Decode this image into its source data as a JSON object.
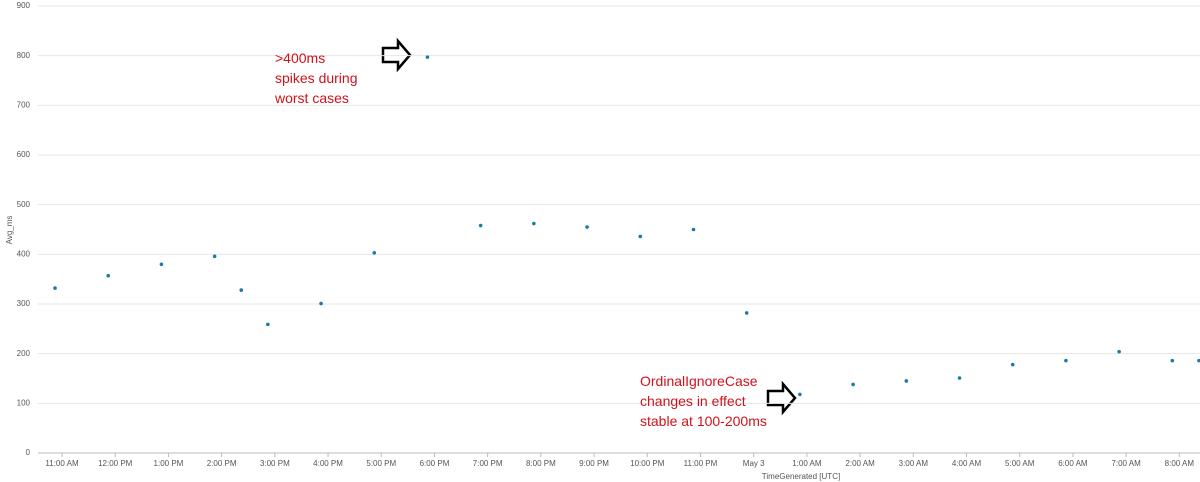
{
  "chart_data": {
    "type": "line",
    "y_label": "Avg_ms",
    "x_label": "TimeGenerated [UTC]",
    "x": [
      0,
      1,
      2,
      3,
      3.5,
      4,
      5,
      6,
      7,
      8,
      9,
      10,
      11,
      12,
      13,
      14,
      15,
      16,
      17,
      18,
      19,
      20,
      21,
      21.5
    ],
    "series": [
      {
        "name": "Avg_ms",
        "color": "#1a7ba8",
        "values": [
          332,
          357,
          380,
          396,
          328,
          259,
          301,
          403,
          797,
          458,
          462,
          455,
          436,
          450,
          282,
          118,
          138,
          145,
          151,
          178,
          186,
          204,
          186,
          186
        ]
      }
    ],
    "xlim": [
      -0.32,
      21.52
    ],
    "xticks": [
      {
        "value": 0,
        "label": "11:00 AM"
      },
      {
        "value": 1,
        "label": "12:00 PM"
      },
      {
        "value": 2,
        "label": "1:00 PM"
      },
      {
        "value": 3,
        "label": "2:00 PM"
      },
      {
        "value": 4,
        "label": "3:00 PM"
      },
      {
        "value": 5,
        "label": "4:00 PM"
      },
      {
        "value": 6,
        "label": "5:00 PM"
      },
      {
        "value": 7,
        "label": "6:00 PM"
      },
      {
        "value": 8,
        "label": "7:00 PM"
      },
      {
        "value": 9,
        "label": "8:00 PM"
      },
      {
        "value": 10,
        "label": "9:00 PM"
      },
      {
        "value": 11,
        "label": "10:00 PM"
      },
      {
        "value": 12,
        "label": "11:00 PM"
      },
      {
        "value": 13,
        "label": "May 3"
      },
      {
        "value": 14,
        "label": "1:00 AM"
      },
      {
        "value": 15,
        "label": "2:00 AM"
      },
      {
        "value": 16,
        "label": "3:00 AM"
      },
      {
        "value": 17,
        "label": "4:00 AM"
      },
      {
        "value": 18,
        "label": "5:00 AM"
      },
      {
        "value": 19,
        "label": "6:00 AM"
      },
      {
        "value": 20,
        "label": "7:00 AM"
      },
      {
        "value": 21,
        "label": "8:00 AM"
      }
    ],
    "ylim": [
      0,
      900
    ],
    "yticks": [
      0,
      100,
      200,
      300,
      400,
      500,
      600,
      700,
      800,
      900
    ],
    "grid": true,
    "annotations": [
      {
        "lines": [
          ">400ms",
          "spikes during",
          "worst cases"
        ]
      },
      {
        "lines": [
          "OrdinalIgnoreCase",
          "changes in effect",
          "stable at 100-200ms"
        ]
      }
    ]
  }
}
